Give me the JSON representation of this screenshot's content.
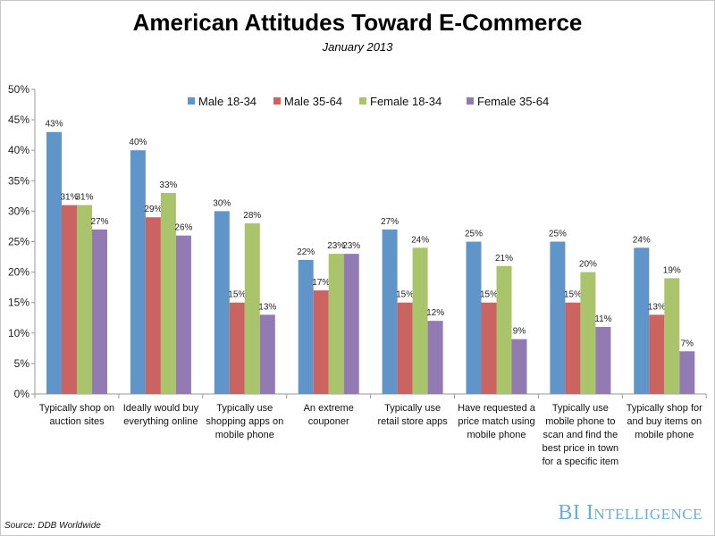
{
  "chart_data": {
    "type": "bar",
    "title": "American Attitudes Toward E-Commerce",
    "subtitle": "January 2013",
    "categories": [
      "Typically shop on\nauction sites",
      "Ideally would buy\neverything online",
      "Typically use\nshopping apps on\nmobile phone",
      "An extreme\ncouponer",
      "Typically use\nretail store apps",
      "Have requested a\nprice match using\nmobile phone",
      "Typically use\nmobile phone to\nscan and find the\nbest price in town\nfor a specific item",
      "Typically shop for\nand buy items on\nmobile phone"
    ],
    "series": [
      {
        "name": "Male 18-34",
        "color": "#6095c9",
        "values": [
          43,
          40,
          30,
          22,
          27,
          25,
          25,
          24
        ]
      },
      {
        "name": "Male 35-64",
        "color": "#cb6461",
        "values": [
          31,
          29,
          15,
          17,
          15,
          15,
          15,
          13
        ]
      },
      {
        "name": "Female 18-34",
        "color": "#a9c46b",
        "values": [
          31,
          33,
          28,
          23,
          24,
          21,
          20,
          19
        ]
      },
      {
        "name": "Female 35-64",
        "color": "#927bb3",
        "values": [
          27,
          26,
          13,
          23,
          12,
          9,
          11,
          7
        ]
      }
    ],
    "ylim": [
      0,
      50
    ],
    "yticks": [
      "0%",
      "5%",
      "10%",
      "15%",
      "20%",
      "25%",
      "30%",
      "35%",
      "40%",
      "45%",
      "50%"
    ],
    "value_suffix": "%",
    "grid": false,
    "legend_position": "top"
  },
  "footer": {
    "source": "Source: DDB Worldwide",
    "logo": "BI Intelligence"
  }
}
